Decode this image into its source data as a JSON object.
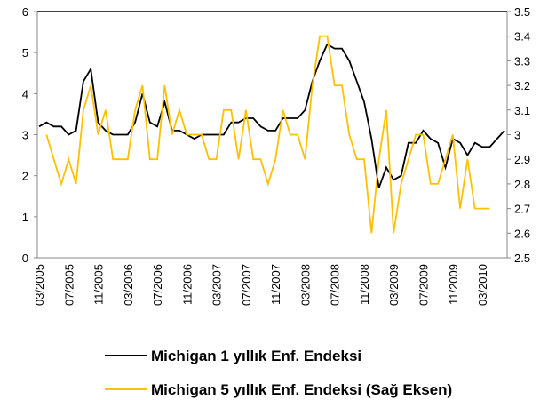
{
  "chart_data": {
    "type": "line",
    "categories": [
      "03/2005",
      null,
      null,
      null,
      "07/2005",
      null,
      null,
      null,
      "11/2005",
      null,
      null,
      null,
      "03/2006",
      null,
      null,
      null,
      "07/2006",
      null,
      null,
      null,
      "11/2006",
      null,
      null,
      null,
      "03/2007",
      null,
      null,
      null,
      "07/2007",
      null,
      null,
      null,
      "11/2007",
      null,
      null,
      null,
      "03/2008",
      null,
      null,
      null,
      "07/2008",
      null,
      null,
      null,
      "11/2008",
      null,
      null,
      null,
      "03/2009",
      null,
      null,
      null,
      "07/2009",
      null,
      null,
      null,
      "11/2009",
      null,
      null,
      null,
      "03/2010",
      null,
      null,
      null
    ],
    "series": [
      {
        "name": "Michigan 1 yıllık Enf. Endeksi",
        "color": "#000000",
        "axis": "y",
        "values": [
          3.2,
          3.3,
          3.2,
          3.2,
          3.0,
          3.1,
          4.3,
          4.6,
          3.3,
          3.1,
          3.0,
          3.0,
          3.0,
          3.3,
          4.0,
          3.3,
          3.2,
          3.8,
          3.1,
          3.1,
          3.0,
          2.9,
          3.0,
          3.0,
          3.0,
          3.0,
          3.3,
          3.3,
          3.4,
          3.4,
          3.2,
          3.1,
          3.1,
          3.4,
          3.4,
          3.4,
          3.6,
          4.3,
          4.8,
          5.2,
          5.1,
          5.1,
          4.8,
          4.3,
          3.8,
          2.9,
          1.7,
          2.2,
          1.9,
          2.0,
          2.8,
          2.8,
          3.1,
          2.9,
          2.8,
          2.2,
          2.9,
          2.8,
          2.5,
          2.8,
          2.7,
          2.7,
          2.9,
          3.1
        ]
      },
      {
        "name": "Michigan 5 yıllık Enf. Endeksi (Sağ Eksen)",
        "color": "#ffc000",
        "axis": "y2",
        "values": [
          null,
          3.0,
          2.9,
          2.8,
          2.9,
          2.8,
          3.1,
          3.2,
          3.0,
          3.1,
          2.9,
          2.9,
          2.9,
          3.1,
          3.2,
          2.9,
          2.9,
          3.2,
          3.0,
          3.1,
          3.0,
          3.0,
          3.0,
          2.9,
          2.9,
          3.1,
          3.1,
          2.9,
          3.1,
          2.9,
          2.9,
          2.8,
          2.9,
          3.1,
          3.0,
          3.0,
          2.9,
          3.2,
          3.4,
          3.4,
          3.2,
          3.2,
          3.0,
          2.9,
          2.9,
          2.6,
          2.9,
          3.1,
          2.6,
          2.8,
          2.9,
          3.0,
          3.0,
          2.8,
          2.8,
          2.9,
          3.0,
          2.7,
          2.9,
          2.7,
          2.7,
          2.7,
          null,
          null
        ]
      }
    ],
    "ylim": [
      0,
      6
    ],
    "yticks": [
      0,
      1,
      2,
      3,
      4,
      5,
      6
    ],
    "y2lim": [
      2.5,
      3.5
    ],
    "y2ticks": [
      2.5,
      2.6,
      2.7,
      2.8,
      2.9,
      3,
      3.1,
      3.2,
      3.3,
      3.4,
      3.5
    ]
  }
}
